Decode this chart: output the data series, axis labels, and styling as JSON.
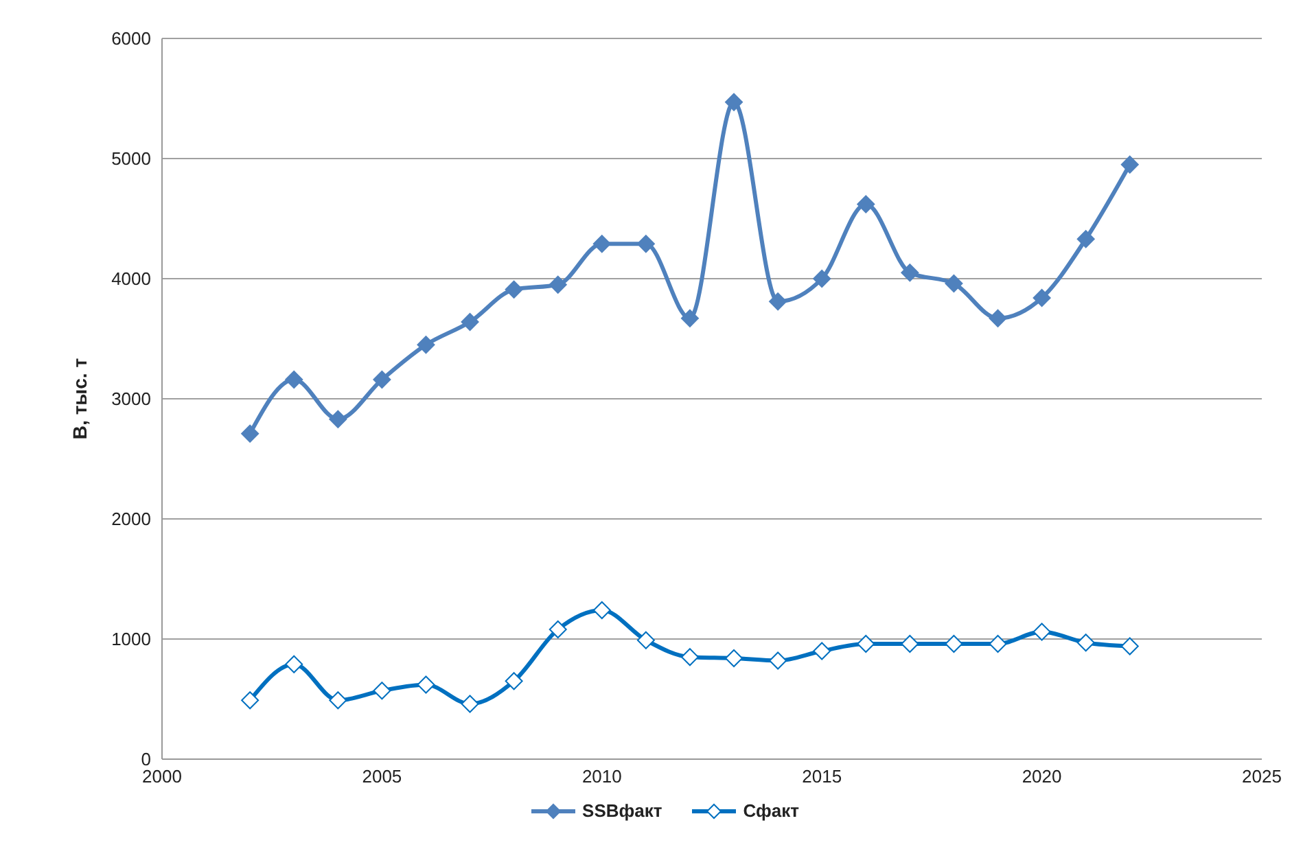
{
  "chart_data": {
    "type": "line",
    "ylabel": "В, тыс. т",
    "x": [
      2002,
      2003,
      2004,
      2005,
      2006,
      2007,
      2008,
      2009,
      2010,
      2011,
      2012,
      2013,
      2014,
      2015,
      2016,
      2017,
      2018,
      2019,
      2020,
      2021,
      2022
    ],
    "series": [
      {
        "name": "SSBфакт",
        "color": "#4f81bd",
        "values": [
          2710,
          3160,
          2830,
          3160,
          3450,
          3640,
          3910,
          3950,
          4290,
          4290,
          3670,
          5470,
          3810,
          4000,
          4620,
          4050,
          3960,
          3670,
          3840,
          4330,
          4950
        ]
      },
      {
        "name": "Сфакт",
        "color": "#0070c0",
        "values": [
          490,
          790,
          490,
          570,
          620,
          460,
          650,
          1080,
          1240,
          990,
          850,
          840,
          820,
          900,
          960,
          960,
          960,
          960,
          1060,
          970,
          940
        ]
      }
    ],
    "xlim": [
      2000,
      2025
    ],
    "xticks": [
      2000,
      2005,
      2010,
      2015,
      2020,
      2025
    ],
    "ylim": [
      0,
      6000
    ],
    "yticks": [
      0,
      1000,
      2000,
      3000,
      4000,
      5000,
      6000
    ],
    "grid": "y",
    "legend": "bottom",
    "marker": "diamond",
    "line_style": "solid"
  }
}
